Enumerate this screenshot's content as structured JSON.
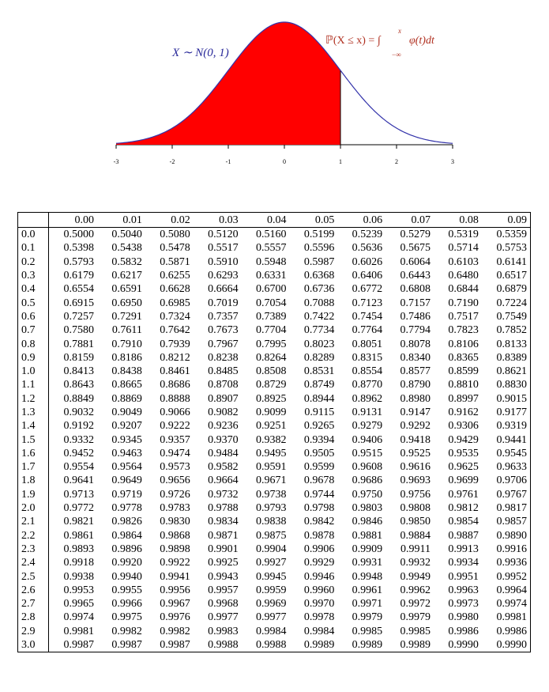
{
  "figure": {
    "xlim": [
      -3,
      3
    ],
    "xticks": [
      -3,
      -2,
      -1,
      0,
      1,
      2,
      3
    ],
    "shade_upper": 1,
    "curve_color": "#3333aa",
    "fill_color": "#ff0000",
    "distribution_label": "X ∼ N(0, 1)",
    "cdf_label": "ℙ(X ≤ x) = ∫",
    "cdf_upper": "x",
    "cdf_lower": "−∞",
    "cdf_integrand": "φ(t)dt"
  },
  "table": {
    "columns": [
      "0.00",
      "0.01",
      "0.02",
      "0.03",
      "0.04",
      "0.05",
      "0.06",
      "0.07",
      "0.08",
      "0.09"
    ],
    "rows": [
      {
        "label": "0.0",
        "cells": [
          "0.5000",
          "0.5040",
          "0.5080",
          "0.5120",
          "0.5160",
          "0.5199",
          "0.5239",
          "0.5279",
          "0.5319",
          "0.5359"
        ]
      },
      {
        "label": "0.1",
        "cells": [
          "0.5398",
          "0.5438",
          "0.5478",
          "0.5517",
          "0.5557",
          "0.5596",
          "0.5636",
          "0.5675",
          "0.5714",
          "0.5753"
        ]
      },
      {
        "label": "0.2",
        "cells": [
          "0.5793",
          "0.5832",
          "0.5871",
          "0.5910",
          "0.5948",
          "0.5987",
          "0.6026",
          "0.6064",
          "0.6103",
          "0.6141"
        ]
      },
      {
        "label": "0.3",
        "cells": [
          "0.6179",
          "0.6217",
          "0.6255",
          "0.6293",
          "0.6331",
          "0.6368",
          "0.6406",
          "0.6443",
          "0.6480",
          "0.6517"
        ]
      },
      {
        "label": "0.4",
        "cells": [
          "0.6554",
          "0.6591",
          "0.6628",
          "0.6664",
          "0.6700",
          "0.6736",
          "0.6772",
          "0.6808",
          "0.6844",
          "0.6879"
        ]
      },
      {
        "label": "0.5",
        "cells": [
          "0.6915",
          "0.6950",
          "0.6985",
          "0.7019",
          "0.7054",
          "0.7088",
          "0.7123",
          "0.7157",
          "0.7190",
          "0.7224"
        ]
      },
      {
        "label": "0.6",
        "cells": [
          "0.7257",
          "0.7291",
          "0.7324",
          "0.7357",
          "0.7389",
          "0.7422",
          "0.7454",
          "0.7486",
          "0.7517",
          "0.7549"
        ]
      },
      {
        "label": "0.7",
        "cells": [
          "0.7580",
          "0.7611",
          "0.7642",
          "0.7673",
          "0.7704",
          "0.7734",
          "0.7764",
          "0.7794",
          "0.7823",
          "0.7852"
        ]
      },
      {
        "label": "0.8",
        "cells": [
          "0.7881",
          "0.7910",
          "0.7939",
          "0.7967",
          "0.7995",
          "0.8023",
          "0.8051",
          "0.8078",
          "0.8106",
          "0.8133"
        ]
      },
      {
        "label": "0.9",
        "cells": [
          "0.8159",
          "0.8186",
          "0.8212",
          "0.8238",
          "0.8264",
          "0.8289",
          "0.8315",
          "0.8340",
          "0.8365",
          "0.8389"
        ]
      },
      {
        "label": "1.0",
        "cells": [
          "0.8413",
          "0.8438",
          "0.8461",
          "0.8485",
          "0.8508",
          "0.8531",
          "0.8554",
          "0.8577",
          "0.8599",
          "0.8621"
        ]
      },
      {
        "label": "1.1",
        "cells": [
          "0.8643",
          "0.8665",
          "0.8686",
          "0.8708",
          "0.8729",
          "0.8749",
          "0.8770",
          "0.8790",
          "0.8810",
          "0.8830"
        ]
      },
      {
        "label": "1.2",
        "cells": [
          "0.8849",
          "0.8869",
          "0.8888",
          "0.8907",
          "0.8925",
          "0.8944",
          "0.8962",
          "0.8980",
          "0.8997",
          "0.9015"
        ]
      },
      {
        "label": "1.3",
        "cells": [
          "0.9032",
          "0.9049",
          "0.9066",
          "0.9082",
          "0.9099",
          "0.9115",
          "0.9131",
          "0.9147",
          "0.9162",
          "0.9177"
        ]
      },
      {
        "label": "1.4",
        "cells": [
          "0.9192",
          "0.9207",
          "0.9222",
          "0.9236",
          "0.9251",
          "0.9265",
          "0.9279",
          "0.9292",
          "0.9306",
          "0.9319"
        ]
      },
      {
        "label": "1.5",
        "cells": [
          "0.9332",
          "0.9345",
          "0.9357",
          "0.9370",
          "0.9382",
          "0.9394",
          "0.9406",
          "0.9418",
          "0.9429",
          "0.9441"
        ]
      },
      {
        "label": "1.6",
        "cells": [
          "0.9452",
          "0.9463",
          "0.9474",
          "0.9484",
          "0.9495",
          "0.9505",
          "0.9515",
          "0.9525",
          "0.9535",
          "0.9545"
        ]
      },
      {
        "label": "1.7",
        "cells": [
          "0.9554",
          "0.9564",
          "0.9573",
          "0.9582",
          "0.9591",
          "0.9599",
          "0.9608",
          "0.9616",
          "0.9625",
          "0.9633"
        ]
      },
      {
        "label": "1.8",
        "cells": [
          "0.9641",
          "0.9649",
          "0.9656",
          "0.9664",
          "0.9671",
          "0.9678",
          "0.9686",
          "0.9693",
          "0.9699",
          "0.9706"
        ]
      },
      {
        "label": "1.9",
        "cells": [
          "0.9713",
          "0.9719",
          "0.9726",
          "0.9732",
          "0.9738",
          "0.9744",
          "0.9750",
          "0.9756",
          "0.9761",
          "0.9767"
        ]
      },
      {
        "label": "2.0",
        "cells": [
          "0.9772",
          "0.9778",
          "0.9783",
          "0.9788",
          "0.9793",
          "0.9798",
          "0.9803",
          "0.9808",
          "0.9812",
          "0.9817"
        ]
      },
      {
        "label": "2.1",
        "cells": [
          "0.9821",
          "0.9826",
          "0.9830",
          "0.9834",
          "0.9838",
          "0.9842",
          "0.9846",
          "0.9850",
          "0.9854",
          "0.9857"
        ]
      },
      {
        "label": "2.2",
        "cells": [
          "0.9861",
          "0.9864",
          "0.9868",
          "0.9871",
          "0.9875",
          "0.9878",
          "0.9881",
          "0.9884",
          "0.9887",
          "0.9890"
        ]
      },
      {
        "label": "2.3",
        "cells": [
          "0.9893",
          "0.9896",
          "0.9898",
          "0.9901",
          "0.9904",
          "0.9906",
          "0.9909",
          "0.9911",
          "0.9913",
          "0.9916"
        ]
      },
      {
        "label": "2.4",
        "cells": [
          "0.9918",
          "0.9920",
          "0.9922",
          "0.9925",
          "0.9927",
          "0.9929",
          "0.9931",
          "0.9932",
          "0.9934",
          "0.9936"
        ]
      },
      {
        "label": "2.5",
        "cells": [
          "0.9938",
          "0.9940",
          "0.9941",
          "0.9943",
          "0.9945",
          "0.9946",
          "0.9948",
          "0.9949",
          "0.9951",
          "0.9952"
        ]
      },
      {
        "label": "2.6",
        "cells": [
          "0.9953",
          "0.9955",
          "0.9956",
          "0.9957",
          "0.9959",
          "0.9960",
          "0.9961",
          "0.9962",
          "0.9963",
          "0.9964"
        ]
      },
      {
        "label": "2.7",
        "cells": [
          "0.9965",
          "0.9966",
          "0.9967",
          "0.9968",
          "0.9969",
          "0.9970",
          "0.9971",
          "0.9972",
          "0.9973",
          "0.9974"
        ]
      },
      {
        "label": "2.8",
        "cells": [
          "0.9974",
          "0.9975",
          "0.9976",
          "0.9977",
          "0.9977",
          "0.9978",
          "0.9979",
          "0.9979",
          "0.9980",
          "0.9981"
        ]
      },
      {
        "label": "2.9",
        "cells": [
          "0.9981",
          "0.9982",
          "0.9982",
          "0.9983",
          "0.9984",
          "0.9984",
          "0.9985",
          "0.9985",
          "0.9986",
          "0.9986"
        ]
      },
      {
        "label": "3.0",
        "cells": [
          "0.9987",
          "0.9987",
          "0.9987",
          "0.9988",
          "0.9988",
          "0.9989",
          "0.9989",
          "0.9989",
          "0.9990",
          "0.9990"
        ]
      }
    ]
  }
}
